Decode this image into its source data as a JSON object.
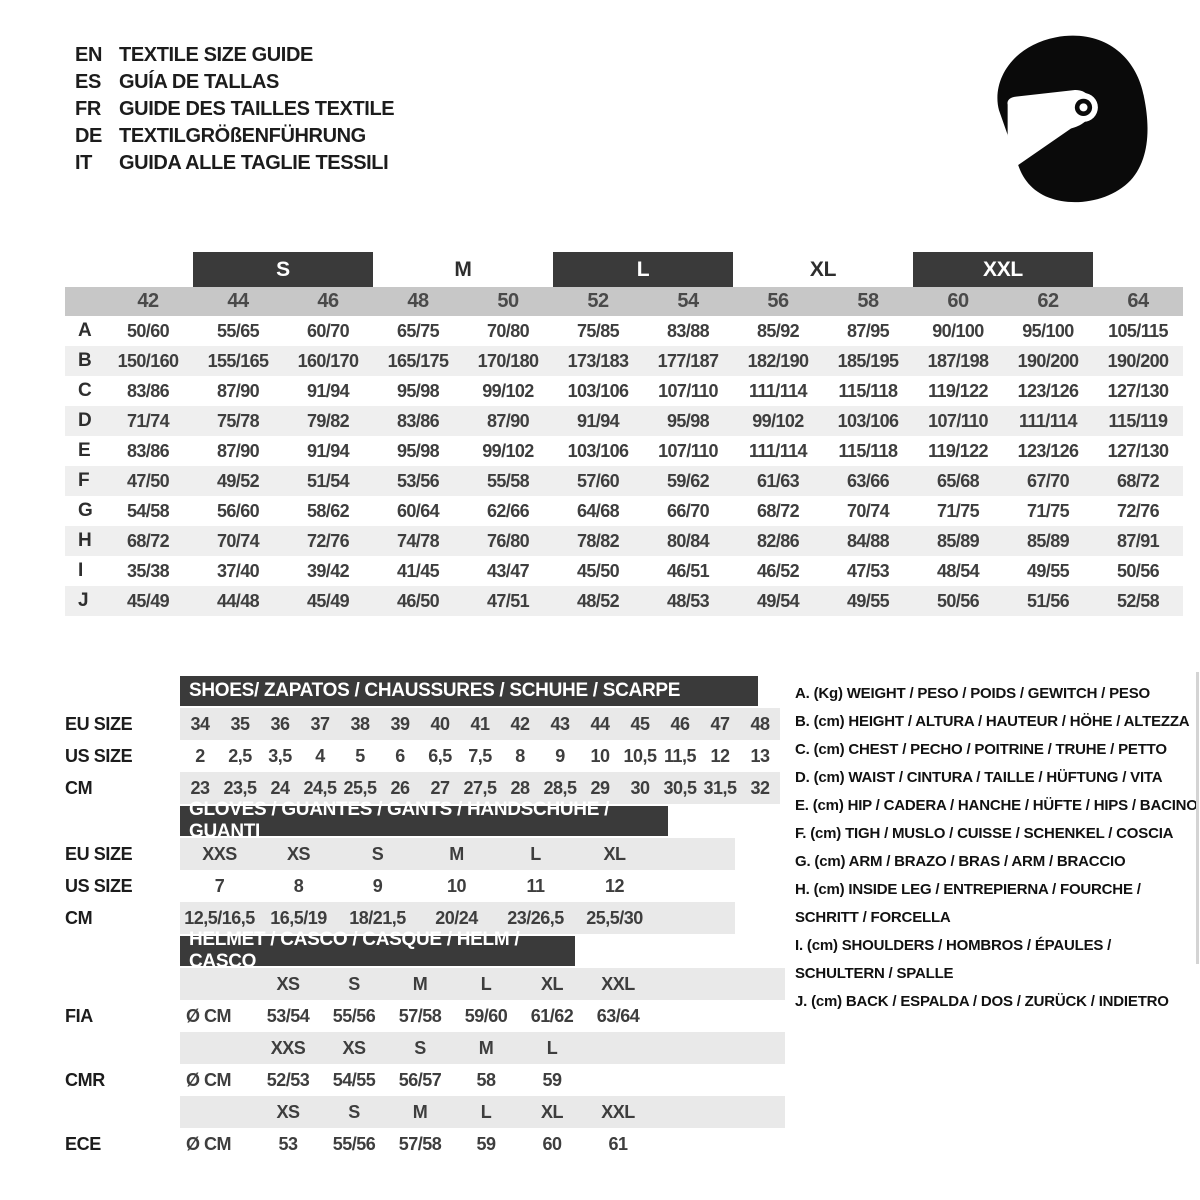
{
  "colors": {
    "header_bar": "#3a3a3a",
    "column_band": "#c7c7c7",
    "row_stripe": "#efefef",
    "band_light": "#e9e9e9",
    "helmet_icon": "#0a0a0a"
  },
  "languages": [
    {
      "code": "EN",
      "title": "TEXTILE SIZE GUIDE"
    },
    {
      "code": "ES",
      "title": "GUÍA DE TALLAS"
    },
    {
      "code": "FR",
      "title": "GUIDE DES TAILLES TEXTILE"
    },
    {
      "code": "DE",
      "title": "TEXTILGRÖßENFÜHRUNG"
    },
    {
      "code": "IT",
      "title": "GUIDA ALLE TAGLIE TESSILI"
    }
  ],
  "main_table": {
    "size_groups": [
      {
        "label": "S",
        "style": "bar",
        "start": 2,
        "span": 2
      },
      {
        "label": "M",
        "style": "text",
        "start": 4,
        "span": 2
      },
      {
        "label": "L",
        "style": "bar",
        "start": 6,
        "span": 2
      },
      {
        "label": "XL",
        "style": "text",
        "start": 8,
        "span": 2
      },
      {
        "label": "XXL",
        "style": "bar",
        "start": 10,
        "span": 2
      }
    ],
    "columns": [
      "42",
      "44",
      "46",
      "48",
      "50",
      "52",
      "54",
      "56",
      "58",
      "60",
      "62",
      "64"
    ],
    "rows": [
      {
        "label": "A",
        "values": [
          "50/60",
          "55/65",
          "60/70",
          "65/75",
          "70/80",
          "75/85",
          "83/88",
          "85/92",
          "87/95",
          "90/100",
          "95/100",
          "105/115"
        ]
      },
      {
        "label": "B",
        "values": [
          "150/160",
          "155/165",
          "160/170",
          "165/175",
          "170/180",
          "173/183",
          "177/187",
          "182/190",
          "185/195",
          "187/198",
          "190/200",
          "190/200"
        ]
      },
      {
        "label": "C",
        "values": [
          "83/86",
          "87/90",
          "91/94",
          "95/98",
          "99/102",
          "103/106",
          "107/110",
          "111/114",
          "115/118",
          "119/122",
          "123/126",
          "127/130"
        ]
      },
      {
        "label": "D",
        "values": [
          "71/74",
          "75/78",
          "79/82",
          "83/86",
          "87/90",
          "91/94",
          "95/98",
          "99/102",
          "103/106",
          "107/110",
          "111/114",
          "115/119"
        ]
      },
      {
        "label": "E",
        "values": [
          "83/86",
          "87/90",
          "91/94",
          "95/98",
          "99/102",
          "103/106",
          "107/110",
          "111/114",
          "115/118",
          "119/122",
          "123/126",
          "127/130"
        ]
      },
      {
        "label": "F",
        "values": [
          "47/50",
          "49/52",
          "51/54",
          "53/56",
          "55/58",
          "57/60",
          "59/62",
          "61/63",
          "63/66",
          "65/68",
          "67/70",
          "68/72"
        ]
      },
      {
        "label": "G",
        "values": [
          "54/58",
          "56/60",
          "58/62",
          "60/64",
          "62/66",
          "64/68",
          "66/70",
          "68/72",
          "70/74",
          "71/75",
          "71/75",
          "72/76"
        ]
      },
      {
        "label": "H",
        "values": [
          "68/72",
          "70/74",
          "72/76",
          "74/78",
          "76/80",
          "78/82",
          "80/84",
          "82/86",
          "84/88",
          "85/89",
          "85/89",
          "87/91"
        ]
      },
      {
        "label": "I",
        "values": [
          "35/38",
          "37/40",
          "39/42",
          "41/45",
          "43/47",
          "45/50",
          "46/51",
          "46/52",
          "47/53",
          "48/54",
          "49/55",
          "50/56"
        ]
      },
      {
        "label": "J",
        "values": [
          "45/49",
          "44/48",
          "45/49",
          "46/50",
          "47/51",
          "48/52",
          "48/53",
          "49/54",
          "49/55",
          "50/56",
          "51/56",
          "52/58"
        ]
      }
    ]
  },
  "shoes": {
    "title": "SHOES/ ZAPATOS / CHAUSSURES / SCHUHE / SCARPE",
    "rows": [
      {
        "label": "EU SIZE",
        "values": [
          "34",
          "35",
          "36",
          "37",
          "38",
          "39",
          "40",
          "41",
          "42",
          "43",
          "44",
          "45",
          "46",
          "47",
          "48"
        ]
      },
      {
        "label": "US SIZE",
        "values": [
          "2",
          "2,5",
          "3,5",
          "4",
          "5",
          "6",
          "6,5",
          "7,5",
          "8",
          "9",
          "10",
          "10,5",
          "11,5",
          "12",
          "13"
        ]
      },
      {
        "label": "CM",
        "values": [
          "23",
          "23,5",
          "24",
          "24,5",
          "25,5",
          "26",
          "27",
          "27,5",
          "28",
          "28,5",
          "29",
          "30",
          "30,5",
          "31,5",
          "32"
        ]
      }
    ]
  },
  "gloves": {
    "title": "GLOVES / GUANTES / GANTS / HANDSCHUHE / GUANTI",
    "rows": [
      {
        "label": "EU SIZE",
        "values": [
          "XXS",
          "XS",
          "S",
          "M",
          "L",
          "XL"
        ]
      },
      {
        "label": "US SIZE",
        "values": [
          "7",
          "8",
          "9",
          "10",
          "11",
          "12"
        ]
      },
      {
        "label": "CM",
        "values": [
          "12,5/16,5",
          "16,5/19",
          "18/21,5",
          "20/24",
          "23/26,5",
          "25,5/30"
        ]
      }
    ]
  },
  "helmet": {
    "title": "HELMET / CASCO / CASQUE / HELM / CASCO",
    "sections": [
      {
        "label": "FIA",
        "unit": "Ø CM",
        "sizes": [
          "XS",
          "S",
          "M",
          "L",
          "XL",
          "XXL"
        ],
        "values": [
          "53/54",
          "55/56",
          "57/58",
          "59/60",
          "61/62",
          "63/64"
        ]
      },
      {
        "label": "CMR",
        "unit": "Ø CM",
        "sizes": [
          "XXS",
          "XS",
          "S",
          "M",
          "L"
        ],
        "values": [
          "52/53",
          "54/55",
          "56/57",
          "58",
          "59"
        ]
      },
      {
        "label": "ECE",
        "unit": "Ø CM",
        "sizes": [
          "XS",
          "S",
          "M",
          "L",
          "XL",
          "XXL"
        ],
        "values": [
          "53",
          "55/56",
          "57/58",
          "59",
          "60",
          "61"
        ]
      }
    ]
  },
  "legend": {
    "items": [
      "A. (Kg) WEIGHT / PESO / POIDS / GEWITCH / PESO",
      "B. (cm) HEIGHT / ALTURA / HAUTEUR / HÖHE / ALTEZZA",
      "C. (cm) CHEST / PECHO / POITRINE / TRUHE / PETTO",
      "D. (cm) WAIST / CINTURA / TAILLE / HÜFTUNG / VITA",
      "E. (cm) HIP / CADERA / HANCHE / HÜFTE / HIPS /  BACINO",
      "F. (cm) TIGH / MUSLO / CUISSE / SCHENKEL / COSCIA",
      "G. (cm) ARM / BRAZO / BRAS / ARM / BRACCIO",
      "H. (cm) INSIDE LEG / ENTREPIERNA / FOURCHE / SCHRITT / FORCELLA",
      "I.  (cm) SHOULDERS / HOMBROS / ÉPAULES / SCHULTERN / SPALLE",
      "J. (cm) BACK / ESPALDA / DOS / ZURÜCK / INDIETRO"
    ]
  }
}
